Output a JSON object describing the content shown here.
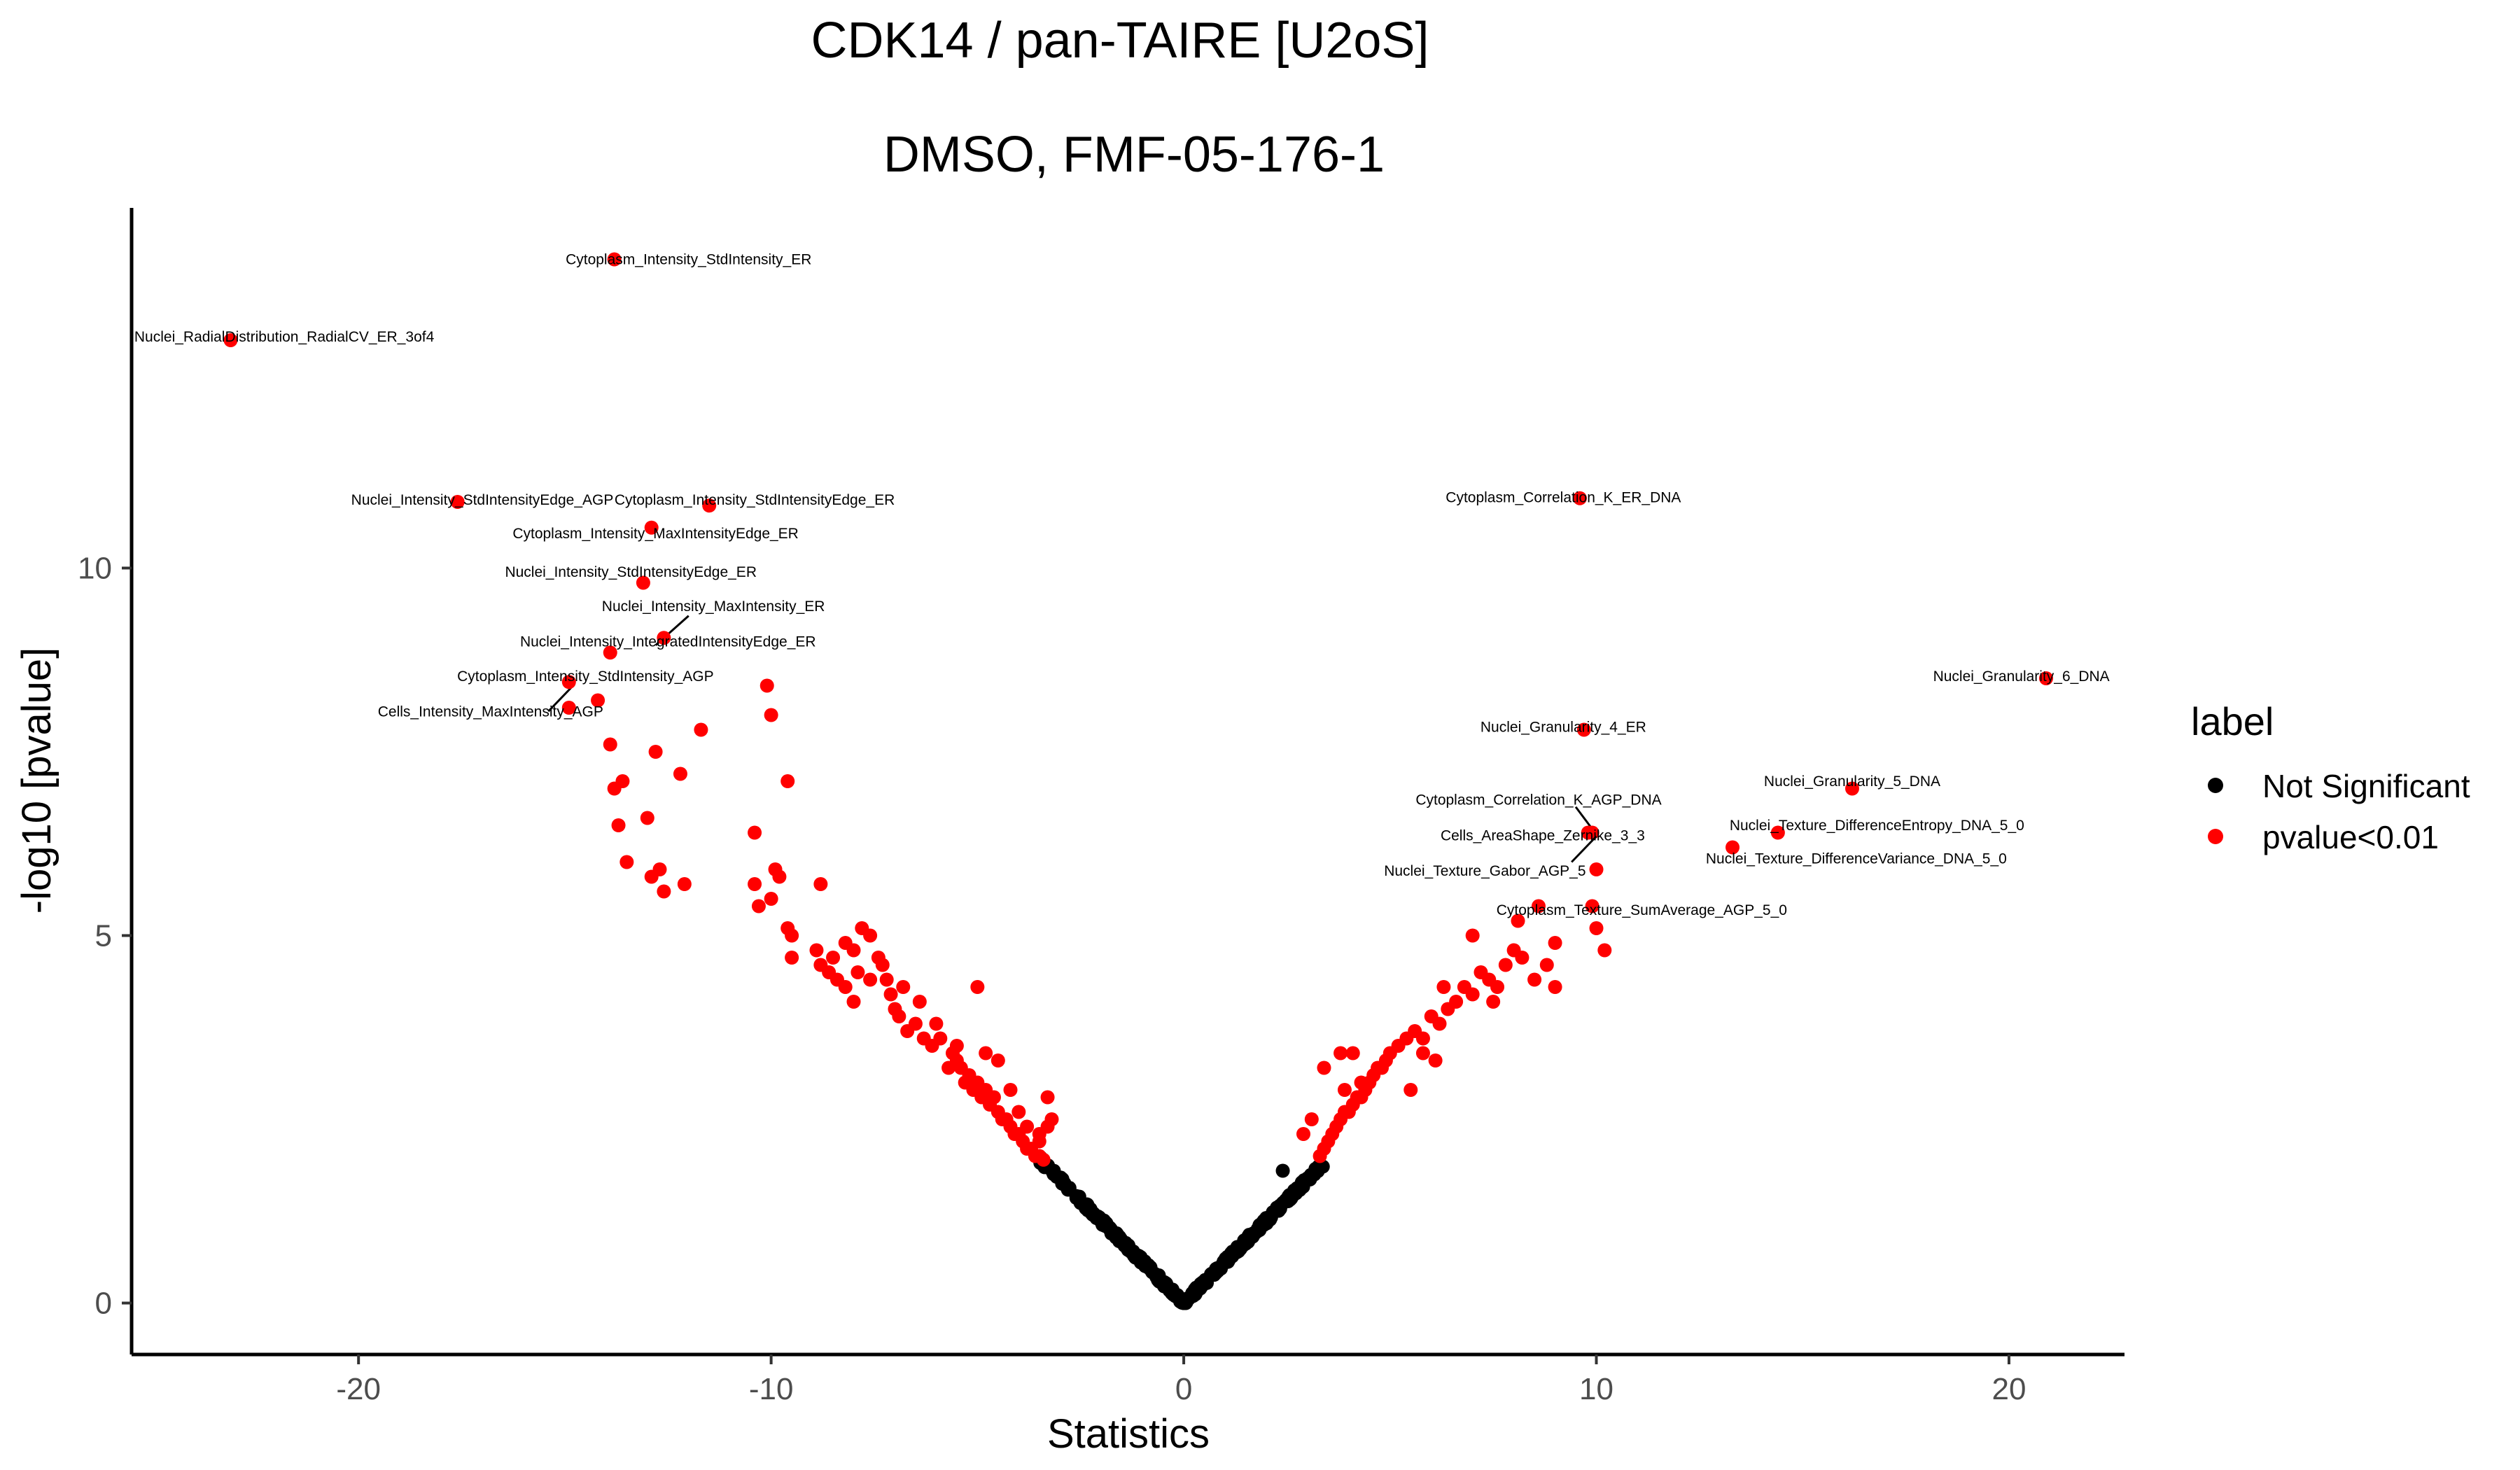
{
  "chart_data": {
    "type": "scatter",
    "title": "CDK14 / pan-TAIRE [U2oS]",
    "subtitle": "DMSO, FMF-05-176-1",
    "xlabel": "Statistics",
    "ylabel": "-log10 [pvalue]",
    "xlim": [
      -25.5,
      22.8
    ],
    "ylim": [
      -0.7,
      14.9
    ],
    "x_ticks": [
      -20,
      -10,
      0,
      10,
      20
    ],
    "x_tick_labels": [
      "-20",
      "-10",
      "0",
      "10",
      "20"
    ],
    "y_ticks": [
      0,
      5,
      10
    ],
    "y_tick_labels": [
      "0",
      "5",
      "10"
    ],
    "grid": false,
    "legend": {
      "title": "label",
      "position": "right",
      "entries": [
        {
          "label": "Not Significant",
          "color": "#000000"
        },
        {
          "label": "pvalue<0.01",
          "color": "#ff0000"
        }
      ]
    },
    "colors": {
      "not_significant": "#000000",
      "significant": "#ff0000"
    },
    "labeled_points": [
      {
        "name": "Cytoplasm_Intensity_StdIntensity_ER",
        "x": -13.8,
        "y": 14.2
      },
      {
        "name": "Nuclei_RadialDistribution_RadialCV_ER_3of4",
        "x": -23.1,
        "y": 13.1
      },
      {
        "name": "Nuclei_Intensity_StdIntensityEdge_AGP",
        "x": -17.6,
        "y": 10.9
      },
      {
        "name": "Cytoplasm_Intensity_StdIntensityEdge_ER",
        "x": -11.5,
        "y": 10.85
      },
      {
        "name": "Cytoplasm_Intensity_MaxIntensityEdge_ER",
        "x": -12.9,
        "y": 10.55
      },
      {
        "name": "Nuclei_Intensity_StdIntensityEdge_ER",
        "x": -13.1,
        "y": 9.8
      },
      {
        "name": "Nuclei_Intensity_MaxIntensity_ER",
        "x": -12.6,
        "y": 9.05
      },
      {
        "name": "Nuclei_Intensity_IntegratedIntensityEdge_ER",
        "x": -13.9,
        "y": 8.85
      },
      {
        "name": "Cytoplasm_Intensity_StdIntensity_AGP",
        "x": -14.9,
        "y": 8.45
      },
      {
        "name": "Cells_Intensity_MaxIntensity_AGP",
        "x": -14.9,
        "y": 8.1
      },
      {
        "name": "Cytoplasm_Correlation_K_ER_DNA",
        "x": 9.6,
        "y": 10.95
      },
      {
        "name": "Nuclei_Granularity_6_DNA",
        "x": 20.9,
        "y": 8.5
      },
      {
        "name": "Nuclei_Granularity_4_ER",
        "x": 9.7,
        "y": 7.8
      },
      {
        "name": "Nuclei_Granularity_5_DNA",
        "x": 16.2,
        "y": 7.0
      },
      {
        "name": "Cytoplasm_Correlation_K_AGP_DNA",
        "x": 9.8,
        "y": 6.4
      },
      {
        "name": "Cells_AreaShape_Zernike_3_3",
        "x": 9.9,
        "y": 6.4
      },
      {
        "name": "Nuclei_Texture_DifferenceEntropy_DNA_5_0",
        "x": 14.4,
        "y": 6.4
      },
      {
        "name": "Nuclei_Texture_Gabor_AGP_5",
        "x": 10.0,
        "y": 5.9
      },
      {
        "name": "Nuclei_Texture_DifferenceVariance_DNA_5_0",
        "x": 13.3,
        "y": 6.2
      },
      {
        "name": "Cytoplasm_Texture_SumAverage_AGP_5_0",
        "x": 8.6,
        "y": 5.4
      }
    ],
    "significant_points": [
      [
        -14.2,
        8.2
      ],
      [
        -13.9,
        7.6
      ],
      [
        -13.8,
        7.0
      ],
      [
        -13.6,
        7.1
      ],
      [
        -13.7,
        6.5
      ],
      [
        -13.5,
        6.0
      ],
      [
        -13.0,
        6.6
      ],
      [
        -12.9,
        5.8
      ],
      [
        -12.7,
        5.9
      ],
      [
        -12.6,
        5.6
      ],
      [
        -12.1,
        5.7
      ],
      [
        -12.2,
        7.2
      ],
      [
        -12.8,
        7.5
      ],
      [
        -11.7,
        7.8
      ],
      [
        -10.4,
        6.4
      ],
      [
        -10.4,
        5.7
      ],
      [
        -10.3,
        5.4
      ],
      [
        -10.0,
        5.5
      ],
      [
        -9.9,
        5.9
      ],
      [
        -9.8,
        5.8
      ],
      [
        -10.1,
        8.4
      ],
      [
        -10.0,
        8.0
      ],
      [
        -9.6,
        7.1
      ],
      [
        -9.6,
        5.1
      ],
      [
        -9.5,
        5.0
      ],
      [
        -9.5,
        4.7
      ],
      [
        -8.8,
        5.7
      ],
      [
        -8.9,
        4.8
      ],
      [
        -8.8,
        4.6
      ],
      [
        -8.6,
        4.5
      ],
      [
        -8.5,
        4.7
      ],
      [
        -8.2,
        4.9
      ],
      [
        -8.0,
        4.8
      ],
      [
        -7.8,
        5.1
      ],
      [
        -7.6,
        5.0
      ],
      [
        -7.9,
        4.5
      ],
      [
        -7.4,
        4.7
      ],
      [
        -7.2,
        4.4
      ],
      [
        -7.1,
        4.2
      ],
      [
        -8.2,
        4.3
      ],
      [
        -8.0,
        4.1
      ],
      [
        -7.6,
        4.4
      ],
      [
        -7.0,
        4.0
      ],
      [
        -6.9,
        3.9
      ],
      [
        -6.7,
        3.7
      ],
      [
        -6.5,
        3.8
      ],
      [
        -6.3,
        3.6
      ],
      [
        -6.1,
        3.5
      ],
      [
        -5.9,
        3.6
      ],
      [
        -5.7,
        3.2
      ],
      [
        -5.6,
        3.4
      ],
      [
        -5.5,
        3.3
      ],
      [
        -5.4,
        3.2
      ],
      [
        -5.3,
        3.0
      ],
      [
        -5.2,
        3.1
      ],
      [
        -5.1,
        2.9
      ],
      [
        -5.0,
        3.0
      ],
      [
        -4.9,
        2.8
      ],
      [
        -4.8,
        2.9
      ],
      [
        -4.7,
        2.7
      ],
      [
        -4.6,
        2.8
      ],
      [
        -4.5,
        2.6
      ],
      [
        -4.4,
        2.5
      ],
      [
        -4.3,
        2.5
      ],
      [
        -4.2,
        2.4
      ],
      [
        -4.1,
        2.3
      ],
      [
        -4.0,
        2.3
      ],
      [
        -3.9,
        2.2
      ],
      [
        -3.8,
        2.1
      ],
      [
        -3.7,
        2.1
      ],
      [
        -3.6,
        2.0
      ],
      [
        -3.5,
        2.0
      ],
      [
        -3.4,
        1.95
      ],
      [
        -3.3,
        2.4
      ],
      [
        -3.2,
        2.5
      ],
      [
        -3.5,
        2.2
      ],
      [
        -3.8,
        2.4
      ],
      [
        -4.0,
        2.6
      ],
      [
        -4.2,
        2.9
      ],
      [
        -4.5,
        3.3
      ],
      [
        -4.8,
        3.4
      ],
      [
        -5.0,
        4.3
      ],
      [
        -5.5,
        3.5
      ],
      [
        -6.0,
        3.8
      ],
      [
        -6.4,
        4.1
      ],
      [
        -6.8,
        4.3
      ],
      [
        -7.3,
        4.6
      ],
      [
        -8.4,
        4.4
      ],
      [
        -3.3,
        2.8
      ],
      [
        -3.5,
        2.3
      ],
      [
        3.3,
        2.0
      ],
      [
        3.4,
        2.1
      ],
      [
        3.5,
        2.2
      ],
      [
        3.6,
        2.3
      ],
      [
        3.7,
        2.4
      ],
      [
        3.8,
        2.5
      ],
      [
        3.9,
        2.6
      ],
      [
        4.0,
        2.6
      ],
      [
        4.1,
        2.7
      ],
      [
        4.2,
        2.8
      ],
      [
        4.3,
        2.8
      ],
      [
        4.4,
        2.9
      ],
      [
        4.5,
        3.0
      ],
      [
        4.6,
        3.1
      ],
      [
        4.7,
        3.2
      ],
      [
        4.8,
        3.2
      ],
      [
        4.9,
        3.3
      ],
      [
        5.0,
        3.4
      ],
      [
        5.2,
        3.5
      ],
      [
        5.4,
        3.6
      ],
      [
        5.6,
        3.7
      ],
      [
        5.8,
        3.6
      ],
      [
        6.0,
        3.9
      ],
      [
        6.2,
        3.8
      ],
      [
        6.4,
        4.0
      ],
      [
        6.6,
        4.1
      ],
      [
        6.8,
        4.3
      ],
      [
        7.0,
        4.2
      ],
      [
        7.2,
        4.5
      ],
      [
        7.4,
        4.4
      ],
      [
        7.6,
        4.3
      ],
      [
        7.8,
        4.6
      ],
      [
        8.0,
        4.8
      ],
      [
        8.2,
        4.7
      ],
      [
        8.5,
        4.4
      ],
      [
        8.8,
        4.6
      ],
      [
        9.0,
        4.3
      ],
      [
        7.0,
        5.0
      ],
      [
        8.1,
        5.2
      ],
      [
        9.0,
        4.9
      ],
      [
        9.9,
        5.4
      ],
      [
        10.0,
        5.1
      ],
      [
        10.2,
        4.8
      ],
      [
        6.3,
        4.3
      ],
      [
        3.8,
        3.4
      ],
      [
        3.4,
        3.2
      ],
      [
        2.9,
        2.3
      ],
      [
        3.1,
        2.5
      ],
      [
        4.1,
        3.4
      ],
      [
        6.1,
        3.3
      ],
      [
        5.5,
        2.9
      ],
      [
        5.8,
        3.4
      ],
      [
        7.5,
        4.1
      ],
      [
        4.3,
        3.0
      ],
      [
        3.9,
        2.9
      ]
    ]
  }
}
